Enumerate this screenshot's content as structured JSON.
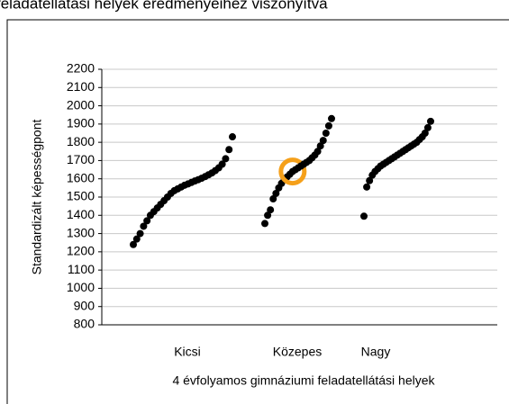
{
  "chart_data": {
    "type": "strip",
    "title": "feladatellátási helyek eredményeihez viszonyítva",
    "y_label": "Standardizált képességpont",
    "x_label": "4 évfolyamos gimnáziumi feladatellátási helyek",
    "categories": [
      "Kicsi",
      "Közepes",
      "Nagy"
    ],
    "series": [
      {
        "color": "#000000",
        "values": [
          1240,
          1270,
          1300,
          1340,
          1370,
          1400,
          1420,
          1440,
          1460,
          1480,
          1500,
          1520,
          1535,
          1545,
          1555,
          1565,
          1572,
          1580,
          1588,
          1595,
          1603,
          1612,
          1622,
          1632,
          1645,
          1660,
          1680,
          1710,
          1760,
          1830
        ]
      },
      {
        "color": "#000000",
        "values": [
          1355,
          1400,
          1430,
          1490,
          1520,
          1550,
          1575,
          1595,
          1610,
          1625,
          1640,
          1650,
          1660,
          1670,
          1680,
          1690,
          1700,
          1715,
          1730,
          1750,
          1780,
          1810,
          1850,
          1890,
          1930
        ]
      },
      {
        "color": "#000000",
        "values": [
          1395,
          1555,
          1590,
          1620,
          1640,
          1655,
          1670,
          1680,
          1690,
          1700,
          1710,
          1720,
          1730,
          1740,
          1750,
          1760,
          1770,
          1780,
          1790,
          1800,
          1815,
          1830,
          1850,
          1880,
          1915
        ]
      }
    ],
    "highlight": {
      "series": 1,
      "index": 10,
      "color": "#f5a01a"
    },
    "ylim": [
      800,
      2200
    ],
    "yticks": [
      800,
      900,
      1000,
      1100,
      1200,
      1300,
      1400,
      1500,
      1600,
      1700,
      1800,
      1900,
      2000,
      2100,
      2200
    ],
    "grid": true
  }
}
